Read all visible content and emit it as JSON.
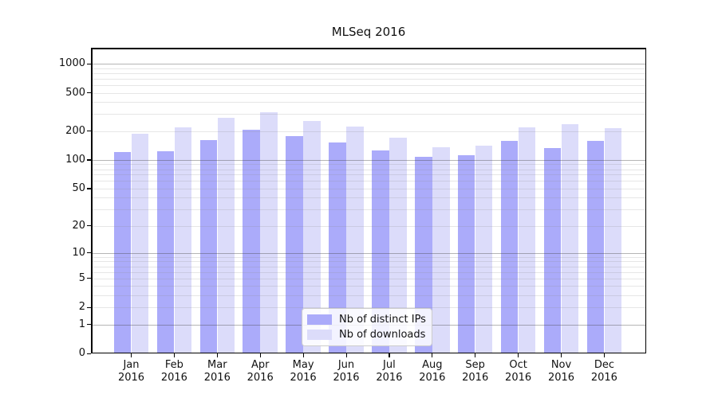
{
  "title": "MLSeq 2016",
  "chart_data": {
    "type": "bar",
    "title": "MLSeq 2016",
    "xlabel": "",
    "ylabel": "",
    "yscale": "log1p",
    "ylim": [
      0,
      1465
    ],
    "grid": true,
    "legend_position": "bottom-center",
    "categories": [
      "Jan 2016",
      "Feb 2016",
      "Mar 2016",
      "Apr 2016",
      "May 2016",
      "Jun 2016",
      "Jul 2016",
      "Aug 2016",
      "Sep 2016",
      "Oct 2016",
      "Nov 2016",
      "Dec 2016"
    ],
    "series": [
      {
        "name": "Nb of distinct IPs",
        "color": "#ababfa",
        "values": [
          121,
          124,
          161,
          208,
          176,
          152,
          126,
          108,
          112,
          157,
          133,
          158
        ]
      },
      {
        "name": "Nb of downloads",
        "color": "#dcdcfa",
        "values": [
          186,
          218,
          277,
          312,
          254,
          222,
          170,
          135,
          142,
          218,
          237,
          215
        ]
      }
    ],
    "y_major_ticks": [
      0,
      1,
      2,
      5,
      10,
      20,
      50,
      100,
      200,
      500,
      1000
    ],
    "y_decade_gridlines": [
      1,
      10,
      100,
      1000
    ],
    "y_minor_gridlines": [
      2,
      3,
      4,
      5,
      6,
      7,
      8,
      9,
      20,
      30,
      40,
      50,
      60,
      70,
      80,
      90,
      200,
      300,
      400,
      500,
      600,
      700,
      800,
      900
    ]
  },
  "palette": {
    "grid_decade": "rgba(70,70,70,0.40)",
    "grid_minor": "rgba(140,140,140,0.22)",
    "spine": "#000000",
    "background": "#ffffff",
    "text": "#111111"
  }
}
